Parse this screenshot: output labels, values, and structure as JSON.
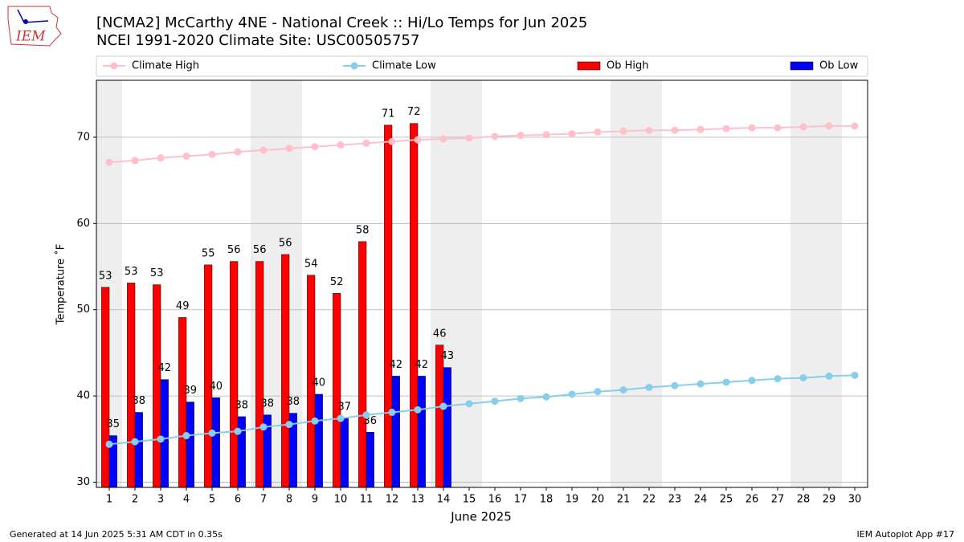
{
  "chart_data": {
    "type": "bar",
    "title": "[NCMA2] McCarthy 4NE - National Creek :: Hi/Lo Temps for Jun 2025",
    "subtitle": "NCEI 1991-2020 Climate Site: USC00505757",
    "xlabel": "June 2025",
    "ylabel": "Temperature ˚F",
    "x": [
      1,
      2,
      3,
      4,
      5,
      6,
      7,
      8,
      9,
      10,
      11,
      12,
      13,
      14,
      15,
      16,
      17,
      18,
      19,
      20,
      21,
      22,
      23,
      24,
      25,
      26,
      27,
      28,
      29,
      30
    ],
    "xlim": [
      0.5,
      30.5
    ],
    "ylim": [
      29.4,
      76.6
    ],
    "yticks": [
      30,
      40,
      50,
      60,
      70
    ],
    "grid": true,
    "weekend_days": [
      1,
      7,
      8,
      14,
      15,
      21,
      22,
      28,
      29
    ],
    "series": [
      {
        "name": "Climate High",
        "type": "line",
        "color": "#ffc0cb",
        "values": [
          67.1,
          67.3,
          67.6,
          67.8,
          68.0,
          68.3,
          68.5,
          68.7,
          68.9,
          69.1,
          69.3,
          69.5,
          69.7,
          69.8,
          69.9,
          70.1,
          70.2,
          70.3,
          70.4,
          70.6,
          70.7,
          70.8,
          70.8,
          70.9,
          71.0,
          71.1,
          71.1,
          71.2,
          71.3,
          71.3
        ]
      },
      {
        "name": "Climate Low",
        "type": "line",
        "color": "#87ceeb",
        "values": [
          34.4,
          34.7,
          35.0,
          35.4,
          35.7,
          35.9,
          36.4,
          36.7,
          37.1,
          37.4,
          37.8,
          38.1,
          38.4,
          38.8,
          39.1,
          39.4,
          39.7,
          39.9,
          40.2,
          40.5,
          40.7,
          41.0,
          41.2,
          41.4,
          41.6,
          41.8,
          42.0,
          42.1,
          42.3,
          42.4
        ]
      },
      {
        "name": "Ob High",
        "type": "bar",
        "color": "#ff0000",
        "values": [
          52.6,
          53.1,
          52.9,
          49.1,
          55.2,
          55.6,
          55.6,
          56.4,
          54.0,
          51.9,
          57.9,
          71.4,
          71.6,
          45.9,
          null,
          null,
          null,
          null,
          null,
          null,
          null,
          null,
          null,
          null,
          null,
          null,
          null,
          null,
          null,
          null
        ],
        "value_labels": [
          "53",
          "53",
          "53",
          "49",
          "55",
          "56",
          "56",
          "56",
          "54",
          "52",
          "58",
          "71",
          "72",
          "46",
          null,
          null,
          null,
          null,
          null,
          null,
          null,
          null,
          null,
          null,
          null,
          null,
          null,
          null,
          null,
          null
        ]
      },
      {
        "name": "Ob Low",
        "type": "bar",
        "color": "#0000ff",
        "values": [
          35.4,
          38.1,
          41.9,
          39.3,
          39.8,
          37.6,
          37.8,
          38.0,
          40.2,
          37.4,
          35.8,
          42.3,
          42.3,
          43.3,
          null,
          null,
          null,
          null,
          null,
          null,
          null,
          null,
          null,
          null,
          null,
          null,
          null,
          null,
          null,
          null
        ],
        "value_labels": [
          "35",
          "38",
          "42",
          "39",
          "40",
          "38",
          "38",
          "38",
          "40",
          "37",
          "36",
          "42",
          "42",
          "43",
          null,
          null,
          null,
          null,
          null,
          null,
          null,
          null,
          null,
          null,
          null,
          null,
          null,
          null,
          null,
          null
        ]
      }
    ]
  },
  "page": {
    "logo": "IEM",
    "footer_left": "Generated at 14 Jun 2025 5:31 AM CDT in 0.35s",
    "footer_right": "IEM Autoplot App #17"
  }
}
